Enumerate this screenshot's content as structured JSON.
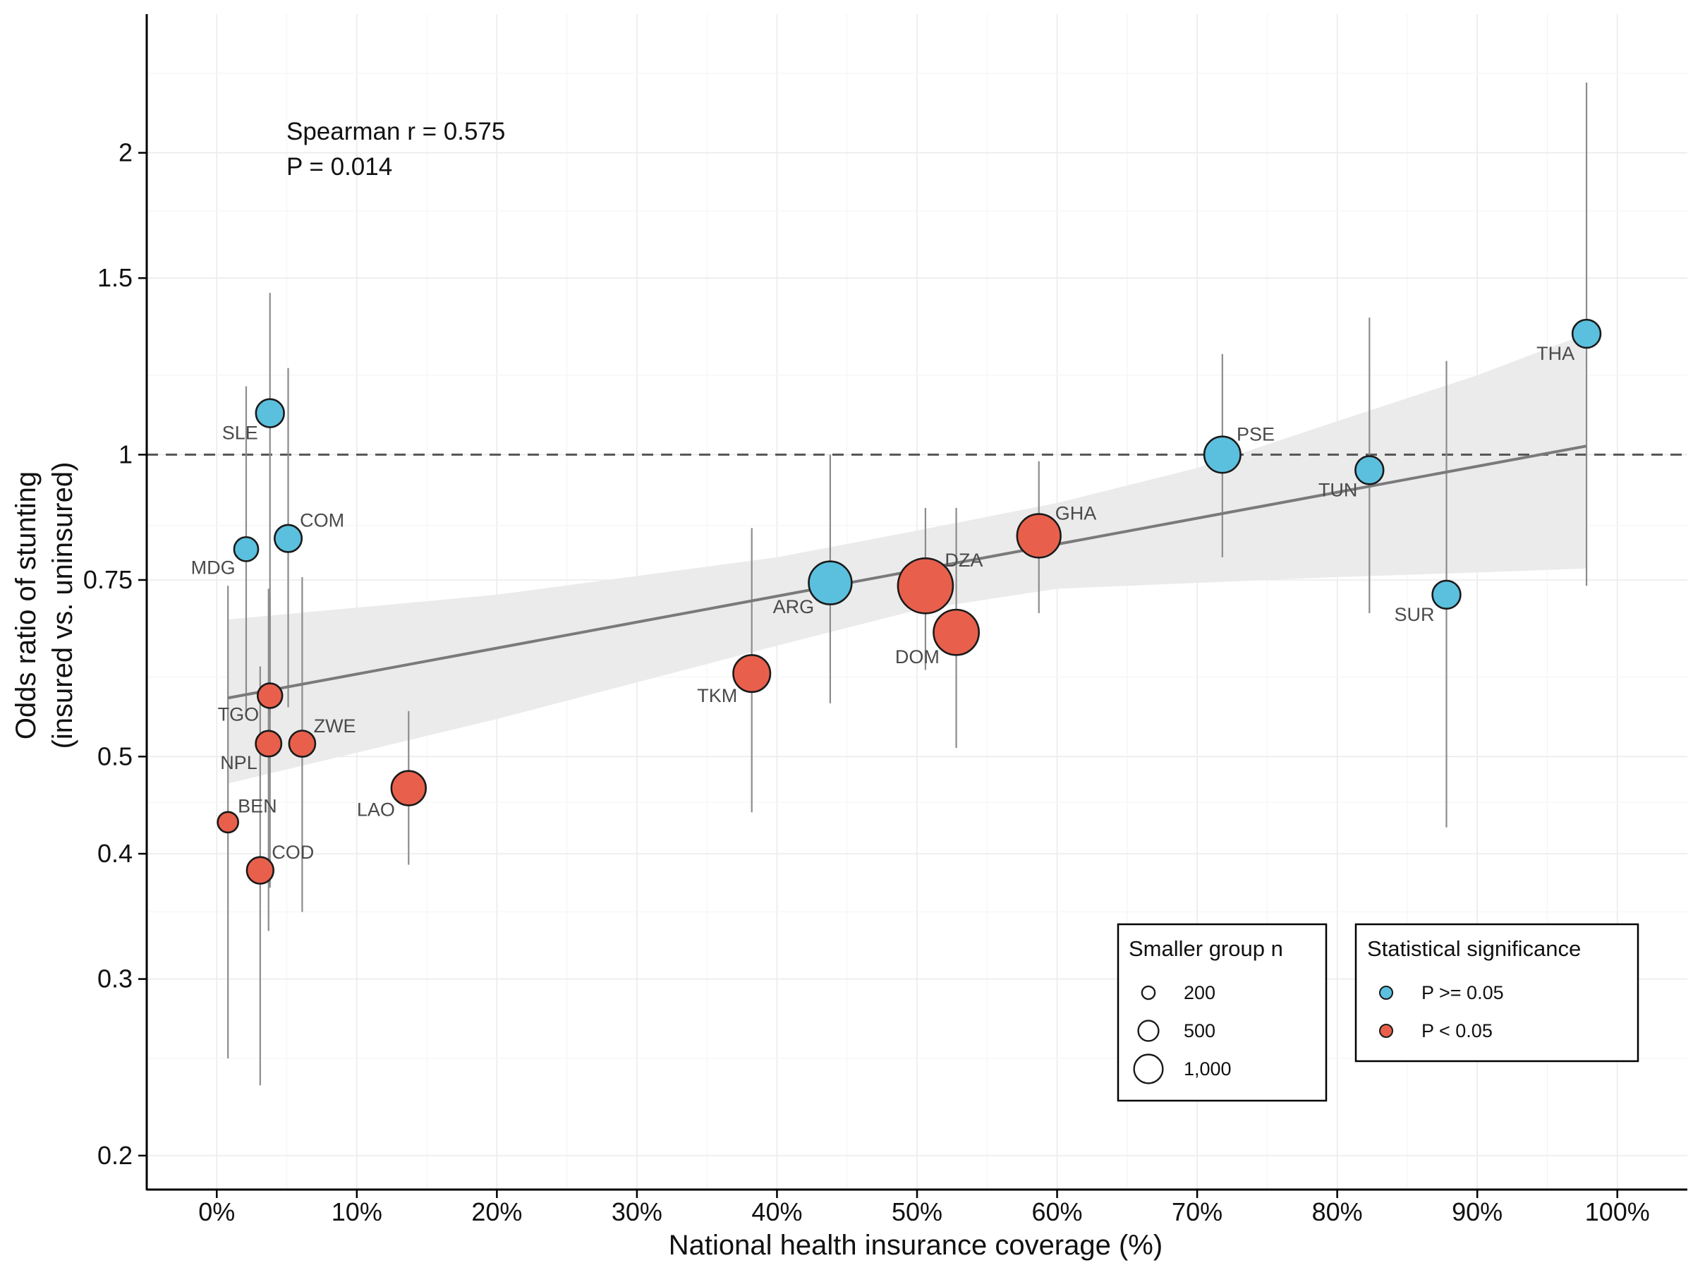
{
  "chart_data": {
    "type": "scatter",
    "xlabel": "National health insurance coverage (%)",
    "ylabel_lines": [
      "Odds ratio of stunting",
      "(insured vs. uninsured)"
    ],
    "x_ticks": [
      {
        "value": 0,
        "label": "0%"
      },
      {
        "value": 10,
        "label": "10%"
      },
      {
        "value": 20,
        "label": "20%"
      },
      {
        "value": 30,
        "label": "30%"
      },
      {
        "value": 40,
        "label": "40%"
      },
      {
        "value": 50,
        "label": "50%"
      },
      {
        "value": 60,
        "label": "60%"
      },
      {
        "value": 70,
        "label": "70%"
      },
      {
        "value": 80,
        "label": "80%"
      },
      {
        "value": 90,
        "label": "90%"
      },
      {
        "value": 100,
        "label": "100%"
      }
    ],
    "y_ticks": [
      {
        "value": 0.2,
        "label": "0.2"
      },
      {
        "value": 0.3,
        "label": "0.3"
      },
      {
        "value": 0.4,
        "label": "0.4"
      },
      {
        "value": 0.5,
        "label": "0.5"
      },
      {
        "value": 0.75,
        "label": "0.75"
      },
      {
        "value": 1,
        "label": "1"
      },
      {
        "value": 1.5,
        "label": "1.5"
      },
      {
        "value": 2,
        "label": "2"
      }
    ],
    "y_minor_gridlines": [
      0.25,
      0.35,
      0.45,
      0.6,
      0.85,
      1.2,
      1.75,
      2.4
    ],
    "xlim": [
      -5,
      105
    ],
    "ylim": [
      0.185,
      2.75
    ],
    "y_scale": "log",
    "reference_line": {
      "y": 1,
      "style": "dashed"
    },
    "annotation": {
      "line1": "Spearman r = 0.575",
      "line2": "P = 0.014"
    },
    "colors": {
      "not_significant": "#5BC0DE",
      "significant": "#E8604C",
      "errorbar": "#8c8c8c",
      "trend": "#7a7a7a",
      "band": "#ebebeb"
    },
    "trend": {
      "x_start": 0.8,
      "y_start": 0.572,
      "x_end": 97.8,
      "y_end": 1.02
    },
    "confidence_band": {
      "x": [
        0.8,
        20,
        40,
        50,
        60,
        70,
        80,
        90,
        97.8
      ],
      "upper": [
        0.685,
        0.725,
        0.79,
        0.84,
        0.895,
        0.97,
        1.08,
        1.2,
        1.32
      ],
      "lower": [
        0.47,
        0.545,
        0.645,
        0.7,
        0.735,
        0.745,
        0.755,
        0.763,
        0.77
      ]
    },
    "points": [
      {
        "code": "SLE",
        "x": 3.8,
        "y": 1.1,
        "ci_low": 0.55,
        "ci_high": 1.45,
        "n": 300,
        "significant": false,
        "label_pos": "left-below"
      },
      {
        "code": "COM",
        "x": 5.1,
        "y": 0.825,
        "ci_low": 0.56,
        "ci_high": 1.22,
        "n": 280,
        "significant": false,
        "label_pos": "right-above"
      },
      {
        "code": "MDG",
        "x": 2.1,
        "y": 0.805,
        "ci_low": 0.55,
        "ci_high": 1.17,
        "n": 220,
        "significant": false,
        "label_pos": "left-below"
      },
      {
        "code": "TGO",
        "x": 3.8,
        "y": 0.575,
        "ci_low": 0.37,
        "ci_high": 0.72,
        "n": 230,
        "significant": true,
        "label_pos": "left-below"
      },
      {
        "code": "NPL",
        "x": 3.7,
        "y": 0.515,
        "ci_low": 0.335,
        "ci_high": 0.735,
        "n": 250,
        "significant": true,
        "label_pos": "left-below"
      },
      {
        "code": "ZWE",
        "x": 6.1,
        "y": 0.515,
        "ci_low": 0.35,
        "ci_high": 0.755,
        "n": 260,
        "significant": true,
        "label_pos": "right-above"
      },
      {
        "code": "BEN",
        "x": 0.8,
        "y": 0.43,
        "ci_low": 0.25,
        "ci_high": 0.74,
        "n": 160,
        "significant": true,
        "label_pos": "right-above"
      },
      {
        "code": "COD",
        "x": 3.1,
        "y": 0.385,
        "ci_low": 0.235,
        "ci_high": 0.615,
        "n": 270,
        "significant": true,
        "label_pos": "right-above"
      },
      {
        "code": "LAO",
        "x": 13.7,
        "y": 0.465,
        "ci_low": 0.39,
        "ci_high": 0.555,
        "n": 450,
        "significant": true,
        "label_pos": "left-below"
      },
      {
        "code": "TKM",
        "x": 38.2,
        "y": 0.605,
        "ci_low": 0.44,
        "ci_high": 0.845,
        "n": 520,
        "significant": true,
        "label_pos": "left-below"
      },
      {
        "code": "ARG",
        "x": 43.8,
        "y": 0.745,
        "ci_low": 0.565,
        "ci_high": 1.0,
        "n": 700,
        "significant": false,
        "label_pos": "left-below"
      },
      {
        "code": "DZA",
        "x": 50.6,
        "y": 0.74,
        "ci_low": 0.61,
        "ci_high": 0.885,
        "n": 1150,
        "significant": true,
        "label_pos": "right-above"
      },
      {
        "code": "DOM",
        "x": 52.8,
        "y": 0.665,
        "ci_low": 0.51,
        "ci_high": 0.885,
        "n": 780,
        "significant": true,
        "label_pos": "left-below"
      },
      {
        "code": "GHA",
        "x": 58.7,
        "y": 0.83,
        "ci_low": 0.695,
        "ci_high": 0.985,
        "n": 720,
        "significant": true,
        "label_pos": "right-above"
      },
      {
        "code": "PSE",
        "x": 71.8,
        "y": 1.0,
        "ci_low": 0.79,
        "ci_high": 1.26,
        "n": 500,
        "significant": false,
        "label_pos": "right-above"
      },
      {
        "code": "TUN",
        "x": 82.3,
        "y": 0.965,
        "ci_low": 0.695,
        "ci_high": 1.37,
        "n": 300,
        "significant": false,
        "label_pos": "left-below"
      },
      {
        "code": "SUR",
        "x": 87.8,
        "y": 0.725,
        "ci_low": 0.425,
        "ci_high": 1.24,
        "n": 300,
        "significant": false,
        "label_pos": "left-below"
      },
      {
        "code": "THA",
        "x": 97.8,
        "y": 1.32,
        "ci_low": 0.74,
        "ci_high": 2.35,
        "n": 300,
        "significant": false,
        "label_pos": "left-below"
      }
    ],
    "legend_size": {
      "title": "Smaller group n",
      "items": [
        {
          "n": 200,
          "label": "200"
        },
        {
          "n": 500,
          "label": "500"
        },
        {
          "n": 1000,
          "label": "1,000"
        }
      ]
    },
    "legend_color": {
      "title": "Statistical significance",
      "items": [
        {
          "significant": false,
          "label": "P >= 0.05"
        },
        {
          "significant": true,
          "label": "P < 0.05"
        }
      ]
    }
  }
}
